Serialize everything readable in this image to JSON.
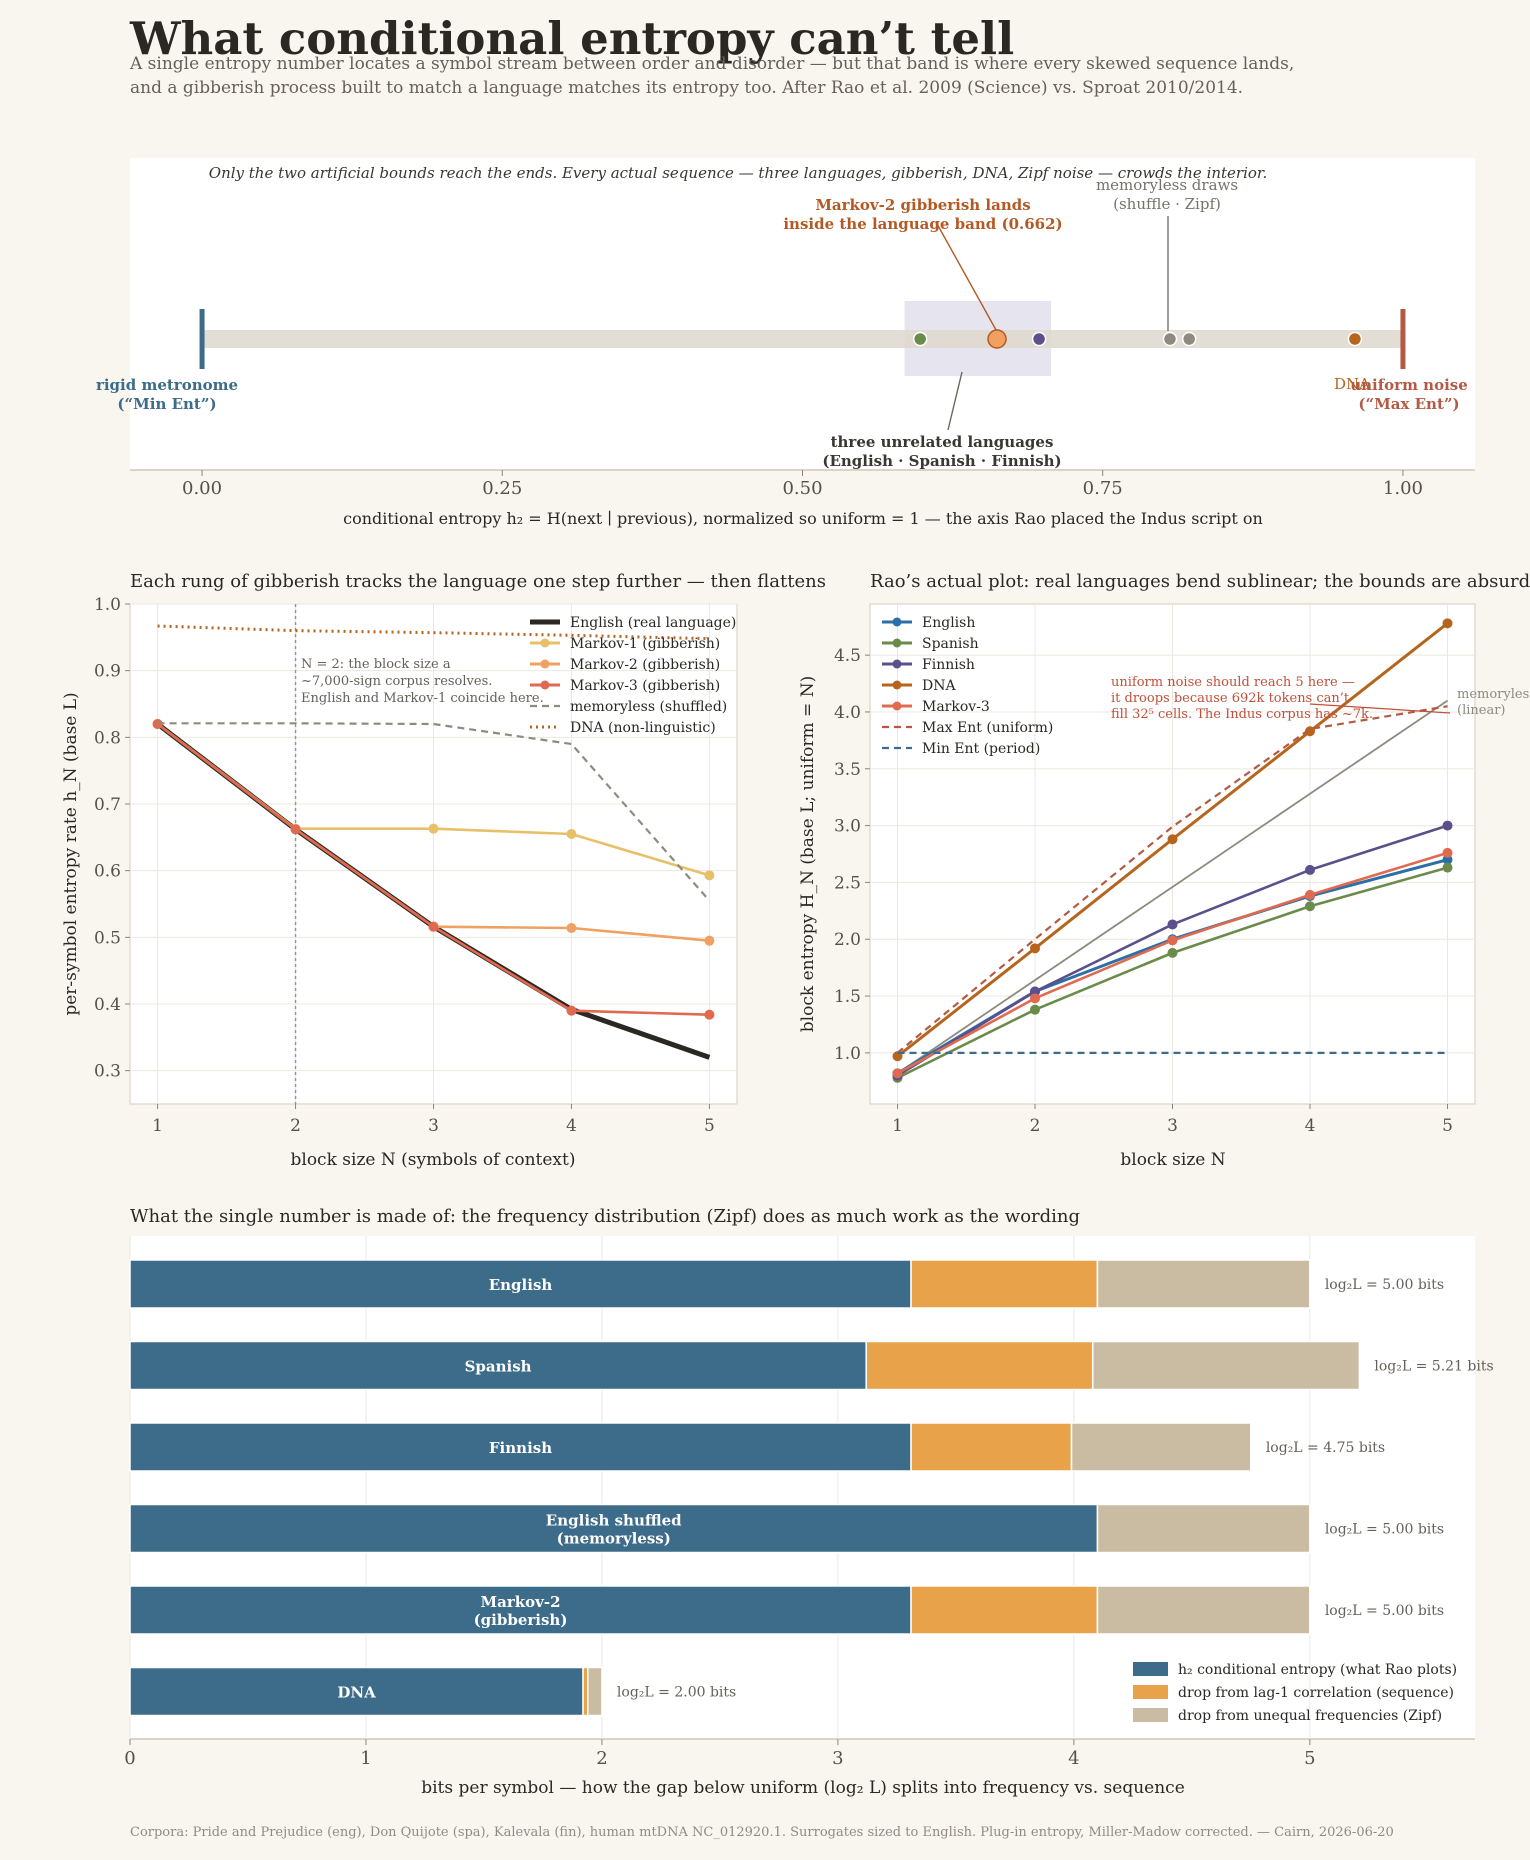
{
  "header": {
    "title": "What conditional entropy can’t tell",
    "subtitle_line1": "A single entropy number locates a symbol stream between order and disorder — but that band is where every skewed sequence lands,",
    "subtitle_line2": "and a gibberish process built to match a language matches its entropy too. After Rao et al. 2009 (Science) vs. Sproat 2010/2014."
  },
  "footer": "Corpora: Pride and Prejudice (eng), Don Quijote (spa), Kalevala (fin), human mtDNA NC_012920.1. Surrogates sized to English. Plug-in entropy, Miller-Madow corrected.  —  Cairn, 2026-06-20",
  "colors": {
    "english": "#2b6fa8",
    "spanish": "#6b8b4a",
    "finnish": "#5b4f8c",
    "dna": "#b5651d",
    "markov1": "#e8c06a",
    "markov2": "#f0a060",
    "markov3": "#e06a50",
    "shuffled": "#8f8a7f",
    "h2": "#3d6b8a",
    "lag1": "#e8a24a",
    "zipf": "#c9bca2",
    "minent": "#3d6b8a",
    "maxent": "#b35a44"
  },
  "chart_data": [
    {
      "type": "scatter",
      "id": "strip",
      "title": "Only the two artificial bounds reach the ends. Every actual sequence — three languages, gibberish, DNA, Zipf noise — crowds the interior.",
      "xlabel": "conditional entropy h₂ = H(next ∣ previous), normalized so uniform = 1  —  the axis Rao placed the Indus script on",
      "xlim": [
        -0.06,
        1.06
      ],
      "xticks": [
        "0.00",
        "0.25",
        "0.50",
        "0.75",
        "1.00"
      ],
      "band": [
        0.585,
        0.707
      ],
      "bounds": [
        {
          "x": 0.0,
          "label_line1": "rigid metronome",
          "label_line2": "(“Min Ent”)",
          "color": "#3d6b8a"
        },
        {
          "x": 1.0,
          "label_line1": "uniform noise",
          "label_line2": "(“Max Ent”)",
          "color": "#b35a44"
        }
      ],
      "points": [
        {
          "name": "Spanish",
          "x": 0.598,
          "color": "#6b8b4a"
        },
        {
          "name": "English",
          "x": 0.662,
          "color": "#2b6fa8"
        },
        {
          "name": "Markov-2",
          "x": 0.662,
          "color": "#f0a060",
          "highlight": true
        },
        {
          "name": "Finnish",
          "x": 0.697,
          "color": "#5b4f8c"
        },
        {
          "name": "shuffle",
          "x": 0.806,
          "color": "#8f8a7f"
        },
        {
          "name": "Zipf",
          "x": 0.822,
          "color": "#8f8a7f"
        },
        {
          "name": "DNA",
          "x": 0.96,
          "color": "#b5651d"
        }
      ],
      "annotations": {
        "markov2_line1": "Markov-2 gibberish lands",
        "markov2_line2": "inside the language band (0.662)",
        "memoryless_line1": "memoryless draws",
        "memoryless_line2": "(shuffle · Zipf)",
        "languages_line1": "three unrelated languages",
        "languages_line2": "(English · Spanish · Finnish)",
        "dna_label": "DNA"
      }
    },
    {
      "type": "line",
      "id": "rate",
      "title": "Each rung of gibberish tracks the language one step further — then flattens",
      "xlabel": "block size  N  (symbols of context)",
      "ylabel": "per-symbol entropy rate  h_N  (base L)",
      "x": [
        1,
        2,
        3,
        4,
        5
      ],
      "xlim": [
        0.8,
        5.2
      ],
      "ylim": [
        0.25,
        1.0
      ],
      "yticks": [
        0.3,
        0.4,
        0.5,
        0.6,
        0.7,
        0.8,
        0.9,
        1.0
      ],
      "vline_x": 2,
      "annotation_line1": "N = 2: the block size a",
      "annotation_line2": "~7,000-sign corpus resolves.",
      "annotation_line3": "English and Markov-1 coincide here.",
      "series": [
        {
          "name": "English (real language)",
          "values": [
            0.82,
            0.662,
            0.516,
            0.392,
            0.32
          ],
          "color": "#2b2723",
          "style": "thick"
        },
        {
          "name": "Markov-1 (gibberish)",
          "values": [
            0.82,
            0.663,
            0.663,
            0.655,
            0.593
          ],
          "color": "#e8c06a",
          "style": "marker"
        },
        {
          "name": "Markov-2 (gibberish)",
          "values": [
            0.82,
            0.662,
            0.516,
            0.514,
            0.495
          ],
          "color": "#f0a060",
          "style": "marker"
        },
        {
          "name": "Markov-3 (gibberish)",
          "values": [
            0.82,
            0.662,
            0.516,
            0.39,
            0.384
          ],
          "color": "#e06a50",
          "style": "marker"
        },
        {
          "name": "memoryless (shuffled)",
          "values": [
            0.821,
            0.821,
            0.82,
            0.79,
            0.555
          ],
          "color": "#8f8a7f",
          "style": "dashed"
        },
        {
          "name": "DNA (non-linguistic)",
          "values": [
            0.967,
            0.96,
            0.957,
            0.953,
            0.948
          ],
          "color": "#b5651d",
          "style": "dotted"
        }
      ]
    },
    {
      "type": "line",
      "id": "block",
      "title": "Rao’s actual plot: real languages bend sublinear; the bounds are absurd",
      "xlabel": "block size  N",
      "ylabel": "block entropy  H_N  (base L; uniform = N)",
      "x": [
        1,
        2,
        3,
        4,
        5
      ],
      "xlim": [
        0.8,
        5.2
      ],
      "ylim": [
        0.55,
        4.95
      ],
      "yticks": [
        1.0,
        1.5,
        2.0,
        2.5,
        3.0,
        3.5,
        4.0,
        4.5
      ],
      "annotation_line1": "uniform noise should reach 5 here —",
      "annotation_line2": "it droops because 692k tokens can’t",
      "annotation_line3": "fill 32⁵ cells. The Indus corpus has ~7k.",
      "memoryless_label_line1": "memoryless",
      "memoryless_label_line2": "(linear)",
      "memoryless_values": [
        0.82,
        1.64,
        2.46,
        3.28,
        4.1
      ],
      "series": [
        {
          "name": "English",
          "values": [
            0.82,
            1.54,
            2.0,
            2.38,
            2.7
          ],
          "color": "#2b6fa8",
          "style": "marker-thick"
        },
        {
          "name": "Spanish",
          "values": [
            0.78,
            1.38,
            1.88,
            2.29,
            2.63
          ],
          "color": "#6b8b4a",
          "style": "marker"
        },
        {
          "name": "Finnish",
          "values": [
            0.8,
            1.54,
            2.13,
            2.61,
            3.0
          ],
          "color": "#5b4f8c",
          "style": "marker"
        },
        {
          "name": "DNA",
          "values": [
            0.97,
            1.92,
            2.88,
            3.83,
            4.78
          ],
          "color": "#b5651d",
          "style": "marker-thick"
        },
        {
          "name": "Markov-3",
          "values": [
            0.82,
            1.48,
            1.99,
            2.39,
            2.76
          ],
          "color": "#e06a50",
          "style": "marker"
        },
        {
          "name": "Max Ent (uniform)",
          "values": [
            1.0,
            2.0,
            2.99,
            3.85,
            4.05
          ],
          "color": "#b35a44",
          "style": "dashed"
        },
        {
          "name": "Min Ent (period)",
          "values": [
            1.0,
            1.0,
            1.0,
            1.0,
            1.0
          ],
          "color": "#3d6b8a",
          "style": "dashed"
        }
      ]
    },
    {
      "type": "bar",
      "id": "decomp",
      "title": "What the single number is made of: the frequency distribution (Zipf) does as much work as the wording",
      "xlabel": "bits per symbol  —  how the gap below uniform (log₂ L) splits into frequency vs. sequence",
      "xlim": [
        0,
        5.7
      ],
      "xticks": [
        0,
        1,
        2,
        3,
        4,
        5
      ],
      "legend": [
        {
          "name": "h₂  conditional entropy (what Rao plots)",
          "color": "#3d6b8a"
        },
        {
          "name": "drop from lag-1 correlation (sequence)",
          "color": "#e8a24a"
        },
        {
          "name": "drop from unequal frequencies (Zipf)",
          "color": "#c9bca2"
        }
      ],
      "bars": [
        {
          "line1": "English",
          "line2": "",
          "h2": 3.31,
          "lag1": 0.79,
          "zipf": 0.9,
          "total_label": "log₂L = 5.00 bits"
        },
        {
          "line1": "Spanish",
          "line2": "",
          "h2": 3.12,
          "lag1": 0.96,
          "zipf": 1.13,
          "total_label": "log₂L = 5.21 bits"
        },
        {
          "line1": "Finnish",
          "line2": "",
          "h2": 3.31,
          "lag1": 0.68,
          "zipf": 0.76,
          "total_label": "log₂L = 4.75 bits"
        },
        {
          "line1": "English shuffled",
          "line2": "(memoryless)",
          "h2": 4.1,
          "lag1": 0.0,
          "zipf": 0.9,
          "total_label": "log₂L = 5.00 bits"
        },
        {
          "line1": "Markov-2",
          "line2": "(gibberish)",
          "h2": 3.31,
          "lag1": 0.79,
          "zipf": 0.9,
          "total_label": "log₂L = 5.00 bits"
        },
        {
          "line1": "DNA",
          "line2": "",
          "h2": 1.92,
          "lag1": 0.02,
          "zipf": 0.06,
          "total_label": "log₂L = 2.00 bits"
        }
      ]
    }
  ]
}
